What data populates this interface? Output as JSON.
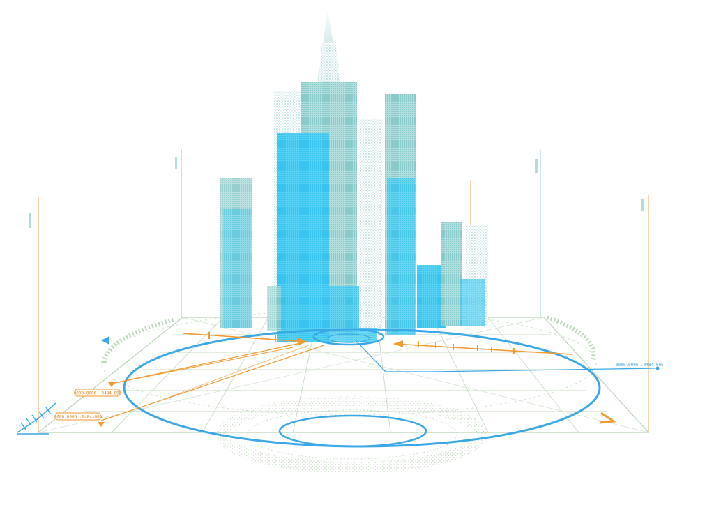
{
  "palette": {
    "building_teal": "#7cc6c6",
    "building_cyan": "#3ec9f0",
    "ring_blue": "#3aa8e6",
    "accent_orange": "#f29a2e",
    "grid_sage": "#a9c9a8"
  },
  "callouts": {
    "right_readout": "0000.0006 .0484-005",
    "left_readout_upper": "0000.0006 .0484-005",
    "left_readout_lower": "0000.0006 .0484x005"
  }
}
